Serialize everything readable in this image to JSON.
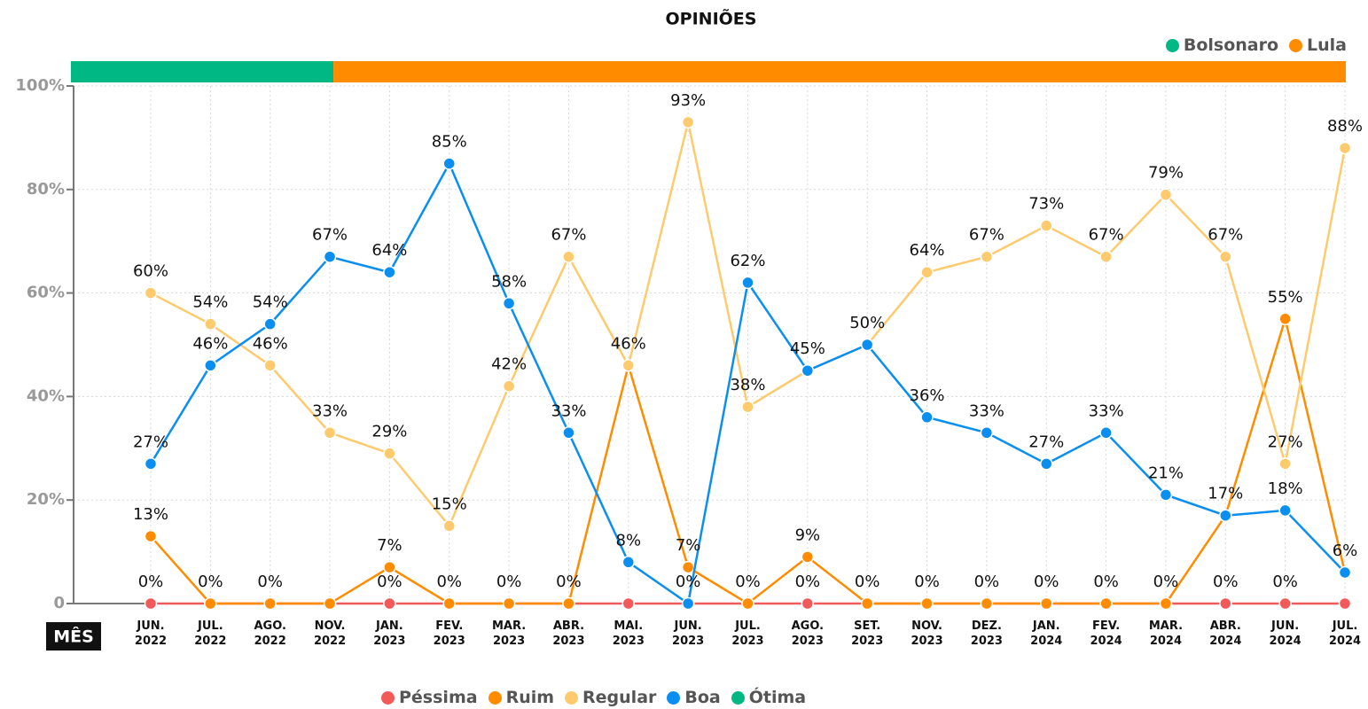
{
  "chart_data": {
    "type": "line",
    "title": "OPINIÕES",
    "x_label": "MÊS",
    "categories": [
      "JUN. 2022",
      "JUL. 2022",
      "AGO. 2022",
      "NOV. 2022",
      "JAN. 2023",
      "FEV. 2023",
      "MAR. 2023",
      "ABR. 2023",
      "MAI. 2023",
      "JUN. 2023",
      "JUL. 2023",
      "AGO. 2023",
      "SET. 2023",
      "NOV. 2023",
      "DEZ. 2023",
      "JAN. 2024",
      "FEV. 2024",
      "MAR. 2024",
      "ABR. 2024",
      "JUN. 2024",
      "JUL. 2024"
    ],
    "periods": [
      {
        "name": "Bolsonaro",
        "color": "#00b884",
        "from": "JUN. 2022",
        "to": "NOV. 2022"
      },
      {
        "name": "Lula",
        "color": "#ff8c00",
        "from": "NOV. 2022",
        "to": "JUL. 2024"
      }
    ],
    "series": [
      {
        "name": "Péssima",
        "color": "#f25a5a",
        "values": [
          0,
          0,
          0,
          0,
          0,
          0,
          0,
          0,
          0,
          0,
          0,
          0,
          0,
          0,
          0,
          0,
          0,
          0,
          0,
          0,
          0
        ],
        "value_labels": [
          "0%",
          "0%",
          "0%",
          null,
          "0%",
          "0%",
          "0%",
          "0%",
          null,
          "0%",
          "0%",
          "0%",
          "0%",
          "0%",
          "0%",
          "0%",
          "0%",
          "0%",
          "0%",
          "0%",
          null
        ]
      },
      {
        "name": "Ruim",
        "color": "#ff8c00",
        "values": [
          13,
          0,
          0,
          0,
          7,
          0,
          0,
          0,
          46,
          7,
          0,
          9,
          0,
          0,
          0,
          0,
          0,
          0,
          17,
          55,
          6
        ],
        "value_labels": [
          "13%",
          null,
          null,
          null,
          "7%",
          null,
          null,
          null,
          null,
          "7%",
          null,
          "9%",
          null,
          null,
          null,
          null,
          null,
          null,
          null,
          "55%",
          null
        ]
      },
      {
        "name": "Regular",
        "color": "#fdcb6e",
        "values": [
          60,
          54,
          46,
          33,
          29,
          15,
          42,
          67,
          46,
          93,
          38,
          45,
          50,
          64,
          67,
          73,
          67,
          79,
          67,
          27,
          88
        ],
        "value_labels": [
          "60%",
          "54%",
          "46%",
          "33%",
          "29%",
          "15%",
          "42%",
          "67%",
          "46%",
          "93%",
          "38%",
          null,
          null,
          "64%",
          "67%",
          "73%",
          "67%",
          "79%",
          "67%",
          "27%",
          "88%"
        ]
      },
      {
        "name": "Boa",
        "color": "#0a8ff0",
        "values": [
          27,
          46,
          54,
          67,
          64,
          85,
          58,
          33,
          8,
          0,
          62,
          45,
          50,
          36,
          33,
          27,
          33,
          21,
          17,
          18,
          6
        ],
        "value_labels": [
          "27%",
          "46%",
          "54%",
          "67%",
          "64%",
          "85%",
          "58%",
          "33%",
          "8%",
          null,
          "62%",
          "45%",
          "50%",
          "36%",
          "33%",
          "27%",
          "33%",
          "21%",
          "17%",
          "18%",
          "6%"
        ]
      },
      {
        "name": "Ótima",
        "color": "#00b884",
        "values": [
          null,
          null,
          null,
          null,
          null,
          null,
          null,
          null,
          null,
          null,
          null,
          null,
          null,
          null,
          null,
          null,
          null,
          null,
          null,
          null,
          null
        ]
      }
    ],
    "ylim": [
      0,
      100
    ],
    "yticks": [
      0,
      {
        "value": 20,
        "label": "20%"
      },
      {
        "value": 40,
        "label": "40%"
      },
      {
        "value": 60,
        "label": "60%"
      },
      {
        "value": 80,
        "label": "80%"
      },
      {
        "value": 100,
        "label": "100%"
      }
    ],
    "grid": true
  }
}
